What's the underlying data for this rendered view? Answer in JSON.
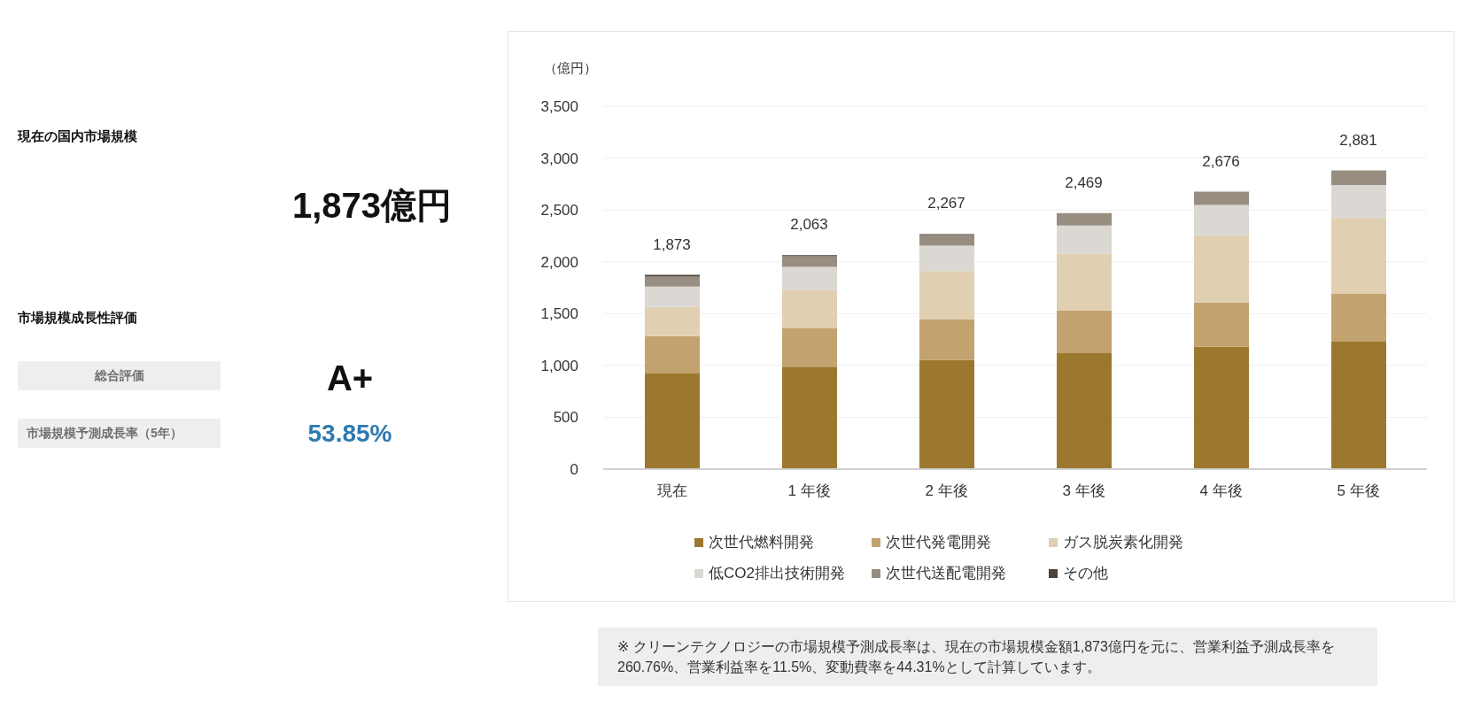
{
  "chart_data": [
    {
      "type": "other",
      "annotations": [
        "現在の国内市場規模",
        "1,873億円",
        "市場規模成長性評価",
        "総合評価",
        "A+",
        "市場規模予測成長率（5年）",
        "53.85%"
      ]
    },
    {
      "type": "bar",
      "stacked": true,
      "ylabel": "（億円）",
      "categories": [
        "現在",
        "1 年後",
        "2 年後",
        "3 年後",
        "4 年後",
        "5 年後"
      ],
      "series": [
        {
          "name": "次世代燃料開発",
          "color": "#9c782e",
          "values": [
            923,
            989,
            1052,
            1119,
            1180,
            1229
          ]
        },
        {
          "name": "次世代発電開発",
          "color": "#c2a26f",
          "values": [
            359,
            368,
            390,
            412,
            428,
            461
          ]
        },
        {
          "name": "ガス脱炭素化開発",
          "color": "#e1cfb2",
          "values": [
            282,
            368,
            468,
            547,
            647,
            733
          ]
        },
        {
          "name": "低CO2排出技術開発",
          "color": "#dbd8d3",
          "values": [
            197,
            225,
            245,
            272,
            293,
            318
          ]
        },
        {
          "name": "次世代送配電開発",
          "color": "#978d80",
          "values": [
            95,
            104,
            103,
            119,
            128,
            140
          ]
        },
        {
          "name": "その他",
          "color": "#4e4136",
          "values": [
            17,
            9,
            9,
            0,
            0,
            0
          ]
        }
      ],
      "totals": [
        "1,873",
        "2,063",
        "2,267",
        "2,469",
        "2,676",
        "2,881"
      ],
      "ylim": [
        0,
        3500
      ],
      "yticks": [
        0,
        500,
        {
          "value": 1000,
          "label": "1,000"
        },
        {
          "value": 1500,
          "label": "1,500"
        },
        {
          "value": 2000,
          "label": "2,000"
        },
        {
          "value": 2500,
          "label": "2,500"
        },
        {
          "value": 3000,
          "label": "3,000"
        },
        {
          "value": 3500,
          "label": "3,500"
        }
      ],
      "grid": "y",
      "legend": "bottom",
      "annotations": [
        "※ クリーンテクノロジーの市場規模予測成長率は、現在の市場規模金額1,873億円を元に、営業利益予測成長率を260.76%、営業利益率を11.5%、変動費率を44.31%として計算しています。"
      ]
    }
  ]
}
